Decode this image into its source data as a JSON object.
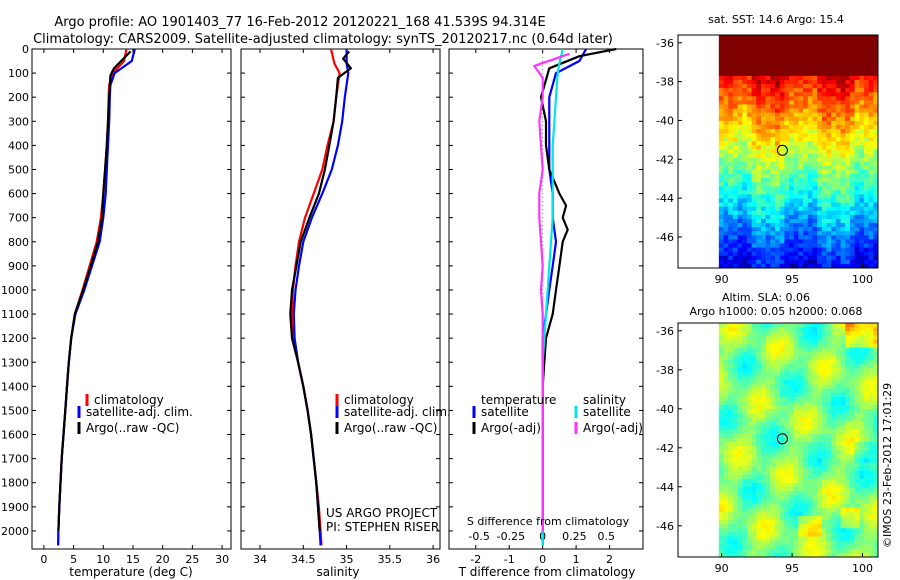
{
  "header": {
    "line1": "Argo profile: AO 1901403_77 16-Feb-2012 20120221_168 41.539S 94.314E",
    "line2": "Climatology: CARS2009. Satellite-adjusted climatology: synTS_20120217.nc (0.64d later)"
  },
  "credit": {
    "line1": "US ARGO PROJECT",
    "line2": "PI: STEPHEN RISER"
  },
  "stamp": "©IMOS 23-Feb-2012 17:01:29",
  "colors": {
    "climatology": "#ff0000",
    "satellite": "#0000ff",
    "argo": "#000000",
    "sat_s": "#00e5e5",
    "argo_s": "#ff33ff"
  },
  "chart_data": [
    {
      "type": "line",
      "xlabel": "temperature (deg C)",
      "xticks": [
        0,
        5,
        10,
        15,
        20,
        25,
        30
      ],
      "xlim": [
        -2,
        31.5
      ],
      "ylim": [
        2075,
        0
      ],
      "yticks": [
        0,
        100,
        200,
        300,
        400,
        500,
        600,
        700,
        800,
        900,
        1000,
        1100,
        1200,
        1300,
        1400,
        1500,
        1600,
        1700,
        1800,
        1900,
        2000
      ],
      "legend": [
        "climatology",
        "satellite-adj. clim.",
        "Argo(..raw -QC)"
      ],
      "series": [
        {
          "name": "climatology",
          "color": "#ff0000",
          "points": [
            [
              13.9,
              0
            ],
            [
              13.5,
              50
            ],
            [
              11.6,
              100
            ],
            [
              11.0,
              150
            ],
            [
              10.9,
              200
            ],
            [
              10.8,
              300
            ],
            [
              10.6,
              400
            ],
            [
              10.3,
              500
            ],
            [
              10.0,
              600
            ],
            [
              9.6,
              700
            ],
            [
              8.9,
              800
            ],
            [
              7.7,
              900
            ],
            [
              6.5,
              1000
            ],
            [
              5.2,
              1100
            ],
            [
              4.6,
              1200
            ],
            [
              4.2,
              1300
            ],
            [
              3.9,
              1400
            ],
            [
              3.6,
              1500
            ],
            [
              3.3,
              1600
            ],
            [
              3.0,
              1700
            ],
            [
              2.8,
              1800
            ],
            [
              2.6,
              1900
            ],
            [
              2.45,
              2000
            ],
            [
              2.4,
              2060
            ]
          ]
        },
        {
          "name": "satellite-adj. clim.",
          "color": "#0000ff",
          "points": [
            [
              15.3,
              0
            ],
            [
              14.8,
              50
            ],
            [
              11.9,
              100
            ],
            [
              11.2,
              150
            ],
            [
              11.1,
              200
            ],
            [
              11.0,
              300
            ],
            [
              10.8,
              400
            ],
            [
              10.6,
              500
            ],
            [
              10.4,
              600
            ],
            [
              10.0,
              700
            ],
            [
              9.4,
              800
            ],
            [
              8.1,
              900
            ],
            [
              6.8,
              1000
            ],
            [
              5.3,
              1100
            ],
            [
              4.6,
              1200
            ],
            [
              4.2,
              1300
            ],
            [
              3.9,
              1400
            ],
            [
              3.6,
              1500
            ],
            [
              3.3,
              1600
            ],
            [
              3.0,
              1700
            ],
            [
              2.8,
              1800
            ],
            [
              2.6,
              1900
            ],
            [
              2.45,
              2000
            ],
            [
              2.4,
              2060
            ]
          ]
        },
        {
          "name": "Argo(..raw -QC)",
          "color": "#000000",
          "points": [
            [
              14.6,
              10
            ],
            [
              13.0,
              50
            ],
            [
              11.8,
              80
            ],
            [
              11.2,
              110
            ],
            [
              11.0,
              200
            ],
            [
              10.8,
              300
            ],
            [
              10.6,
              400
            ],
            [
              10.3,
              500
            ],
            [
              10.0,
              600
            ],
            [
              9.8,
              700
            ],
            [
              9.1,
              800
            ],
            [
              7.9,
              900
            ],
            [
              6.6,
              1000
            ],
            [
              5.2,
              1100
            ],
            [
              4.6,
              1200
            ],
            [
              4.2,
              1300
            ],
            [
              3.9,
              1400
            ],
            [
              3.6,
              1500
            ],
            [
              3.3,
              1600
            ],
            [
              3.0,
              1700
            ],
            [
              2.8,
              1800
            ],
            [
              2.6,
              1900
            ],
            [
              2.45,
              2000
            ]
          ]
        }
      ]
    },
    {
      "type": "line",
      "xlabel": "salinity",
      "xticks": [
        34,
        34.5,
        35,
        35.5,
        36
      ],
      "xlim": [
        33.78,
        36.08
      ],
      "ylim": [
        2075,
        0
      ],
      "legend": [
        "climatology",
        "satellite-adj. clim.",
        "Argo(..raw -QC)"
      ],
      "series": [
        {
          "name": "climatology",
          "color": "#ff0000",
          "points": [
            [
              34.82,
              0
            ],
            [
              34.86,
              60
            ],
            [
              34.92,
              100
            ],
            [
              34.88,
              200
            ],
            [
              34.85,
              300
            ],
            [
              34.78,
              400
            ],
            [
              34.72,
              500
            ],
            [
              34.62,
              600
            ],
            [
              34.52,
              700
            ],
            [
              34.45,
              800
            ],
            [
              34.41,
              900
            ],
            [
              34.38,
              1000
            ],
            [
              34.37,
              1100
            ],
            [
              34.39,
              1200
            ],
            [
              34.44,
              1300
            ],
            [
              34.5,
              1400
            ],
            [
              34.55,
              1500
            ],
            [
              34.59,
              1600
            ],
            [
              34.62,
              1700
            ],
            [
              34.65,
              1800
            ],
            [
              34.68,
              1900
            ],
            [
              34.7,
              2000
            ],
            [
              34.71,
              2060
            ]
          ]
        },
        {
          "name": "satellite-adj. clim.",
          "color": "#0000ff",
          "points": [
            [
              35.0,
              0
            ],
            [
              35.0,
              60
            ],
            [
              35.02,
              100
            ],
            [
              34.98,
              200
            ],
            [
              34.95,
              300
            ],
            [
              34.9,
              400
            ],
            [
              34.83,
              500
            ],
            [
              34.72,
              600
            ],
            [
              34.6,
              700
            ],
            [
              34.5,
              800
            ],
            [
              34.45,
              900
            ],
            [
              34.41,
              1000
            ],
            [
              34.39,
              1100
            ],
            [
              34.4,
              1200
            ],
            [
              34.44,
              1300
            ],
            [
              34.5,
              1400
            ],
            [
              34.55,
              1500
            ],
            [
              34.59,
              1600
            ],
            [
              34.62,
              1700
            ],
            [
              34.65,
              1800
            ],
            [
              34.67,
              1900
            ],
            [
              34.69,
              2000
            ],
            [
              34.7,
              2060
            ]
          ]
        },
        {
          "name": "Argo(..raw -QC)",
          "color": "#000000",
          "points": [
            [
              35.03,
              10
            ],
            [
              34.96,
              40
            ],
            [
              35.05,
              80
            ],
            [
              34.9,
              120
            ],
            [
              34.88,
              200
            ],
            [
              34.85,
              300
            ],
            [
              34.8,
              400
            ],
            [
              34.75,
              500
            ],
            [
              34.68,
              600
            ],
            [
              34.57,
              700
            ],
            [
              34.47,
              800
            ],
            [
              34.42,
              900
            ],
            [
              34.37,
              1000
            ],
            [
              34.35,
              1100
            ],
            [
              34.37,
              1200
            ],
            [
              34.44,
              1300
            ],
            [
              34.5,
              1400
            ],
            [
              34.55,
              1500
            ],
            [
              34.59,
              1600
            ],
            [
              34.62,
              1700
            ],
            [
              34.65,
              1800
            ],
            [
              34.67,
              1900
            ],
            [
              34.69,
              2000
            ]
          ]
        }
      ]
    },
    {
      "type": "line",
      "xlabel": "T difference from climatology",
      "xticks": [
        -2,
        -1,
        0,
        1,
        2
      ],
      "xlim": [
        -2.8,
        3.0
      ],
      "top_label": "S difference from climatology",
      "s_ticks": [
        {
          "label": "-0.5",
          "t": -1.9
        },
        {
          "label": "-0.25",
          "t": -0.95
        },
        {
          "label": "0",
          "t": 0
        },
        {
          "label": "0.25",
          "t": 0.95
        },
        {
          "label": "0.5",
          "t": 1.9
        }
      ],
      "ylim": [
        2075,
        0
      ],
      "legend": {
        "temperature_title": "temperature",
        "salinity_title": "salinity",
        "satellite": "satellite",
        "argo": "Argo(-adj)"
      },
      "series": [
        {
          "name": "T satellite",
          "color": "#0000ff",
          "points": [
            [
              1.3,
              0
            ],
            [
              1.1,
              50
            ],
            [
              0.4,
              100
            ],
            [
              0.2,
              200
            ],
            [
              0.2,
              300
            ],
            [
              0.2,
              400
            ],
            [
              0.2,
              500
            ],
            [
              0.3,
              600
            ],
            [
              0.3,
              700
            ],
            [
              0.4,
              800
            ],
            [
              0.3,
              900
            ],
            [
              0.2,
              1000
            ],
            [
              0.1,
              1100
            ],
            [
              0,
              1200
            ],
            [
              0,
              1400
            ],
            [
              0,
              1600
            ],
            [
              0,
              1800
            ],
            [
              0,
              2000
            ],
            [
              0,
              2060
            ]
          ]
        },
        {
          "name": "T Argo",
          "color": "#000000",
          "points": [
            [
              2.2,
              0
            ],
            [
              1.1,
              30
            ],
            [
              0.2,
              80
            ],
            [
              -0.05,
              200
            ],
            [
              0.1,
              300
            ],
            [
              0.1,
              400
            ],
            [
              0.2,
              500
            ],
            [
              0.5,
              600
            ],
            [
              0.7,
              650
            ],
            [
              0.6,
              700
            ],
            [
              0.75,
              750
            ],
            [
              0.6,
              800
            ],
            [
              0.5,
              900
            ],
            [
              0.4,
              1000
            ],
            [
              0.3,
              1100
            ],
            [
              0.1,
              1200
            ],
            [
              0.05,
              1300
            ],
            [
              0,
              1400
            ],
            [
              0,
              1500
            ],
            [
              0,
              1600
            ],
            [
              0,
              1700
            ],
            [
              0,
              1800
            ],
            [
              0,
              1900
            ],
            [
              0,
              2000
            ]
          ]
        },
        {
          "name": "S satellite",
          "color": "#00e5e5",
          "points": [
            [
              0.6,
              0
            ],
            [
              0.5,
              60
            ],
            [
              0.45,
              100
            ],
            [
              0.4,
              200
            ],
            [
              0.35,
              300
            ],
            [
              0.3,
              400
            ],
            [
              0.3,
              500
            ],
            [
              0.3,
              600
            ],
            [
              0.3,
              700
            ],
            [
              0.25,
              800
            ],
            [
              0.2,
              900
            ],
            [
              0.15,
              1000
            ],
            [
              0.1,
              1100
            ],
            [
              0.05,
              1200
            ],
            [
              0,
              1300
            ],
            [
              0,
              1500
            ],
            [
              0,
              1700
            ],
            [
              0,
              1800
            ],
            [
              0,
              1900
            ],
            [
              0,
              2000
            ],
            [
              0,
              2060
            ]
          ]
        },
        {
          "name": "S Argo",
          "color": "#ff33ff",
          "points": [
            [
              0.8,
              20
            ],
            [
              -0.25,
              70
            ],
            [
              0,
              120
            ],
            [
              0,
              200
            ],
            [
              -0.1,
              300
            ],
            [
              -0.05,
              400
            ],
            [
              0,
              500
            ],
            [
              -0.1,
              600
            ],
            [
              -0.1,
              700
            ],
            [
              -0.05,
              800
            ],
            [
              0,
              900
            ],
            [
              -0.05,
              1000
            ],
            [
              0,
              1100
            ],
            [
              0,
              1200
            ],
            [
              0,
              1300
            ],
            [
              0,
              1400
            ],
            [
              0,
              1600
            ],
            [
              0,
              1800
            ],
            [
              0,
              2000
            ]
          ]
        }
      ]
    },
    {
      "type": "heatmap",
      "title": "sat. SST: 14.6 Argo: 15.4",
      "xticks": [
        90,
        95,
        100
      ],
      "yticks": [
        -36,
        -38,
        -40,
        -42,
        -44,
        -46
      ],
      "xlim": [
        86.9,
        101.1
      ],
      "ylim": [
        -47.6,
        -35.6
      ],
      "marker": {
        "lon": 94.314,
        "lat": -41.539
      }
    },
    {
      "type": "heatmap",
      "title_line1": "Altim. SLA: 0.06",
      "title_line2": "Argo h1000: 0.05 h2000: 0.068",
      "xticks": [
        90,
        95,
        100
      ],
      "yticks": [
        -36,
        -38,
        -40,
        -42,
        -44,
        -46
      ],
      "xlim": [
        86.9,
        101.1
      ],
      "ylim": [
        -47.6,
        -35.6
      ],
      "marker": {
        "lon": 94.314,
        "lat": -41.539
      }
    }
  ]
}
